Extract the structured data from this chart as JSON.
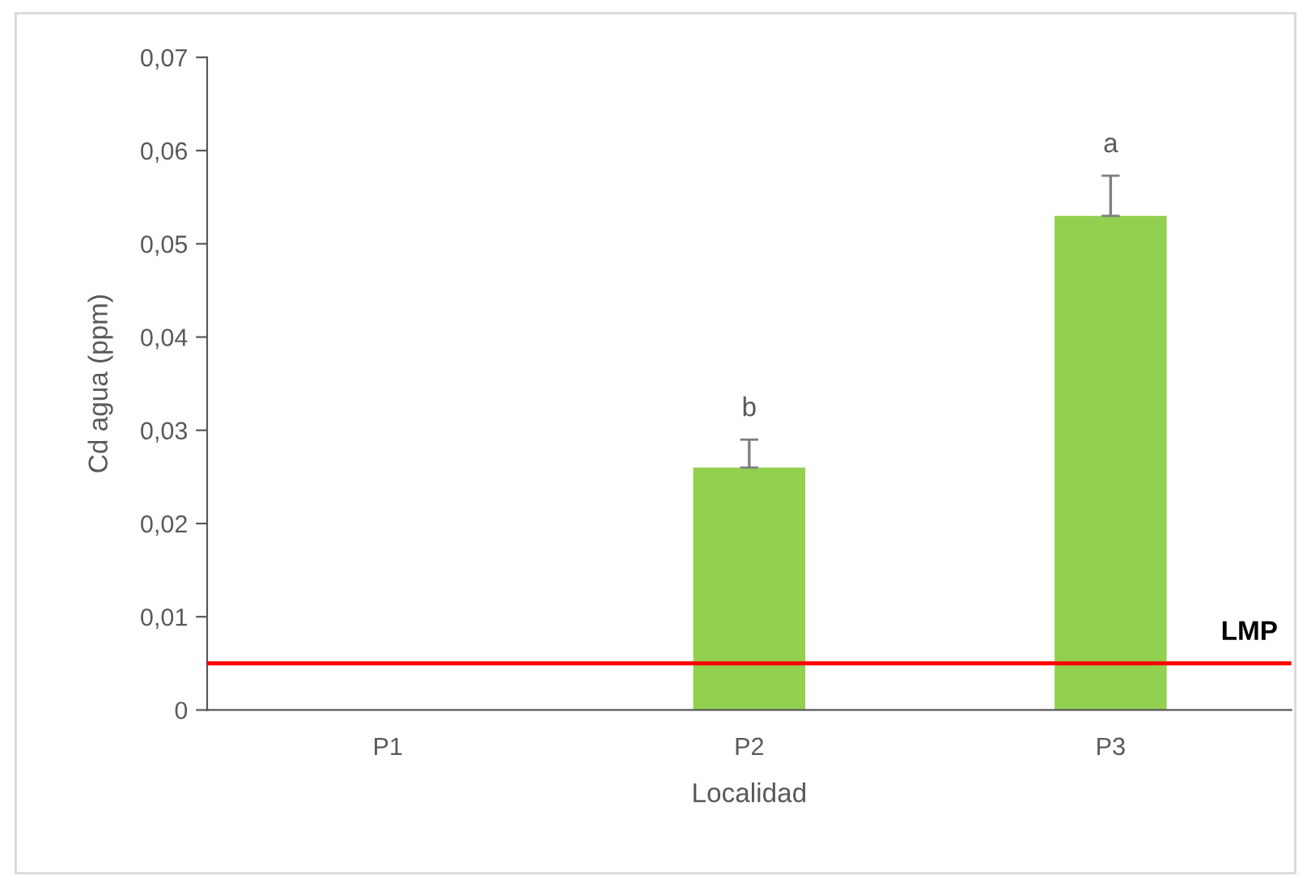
{
  "chart_data": {
    "type": "bar",
    "xlabel": "Localidad",
    "ylabel": "Cd agua (ppm)",
    "categories": [
      "P1",
      "P2",
      "P3"
    ],
    "values": [
      0,
      0.026,
      0.053
    ],
    "errors": [
      null,
      [
        0.026,
        0.029
      ],
      [
        0.053,
        0.0573
      ]
    ],
    "color": "#92d050",
    "ylim": [
      0,
      0.07
    ],
    "yticks": [
      {
        "value": 0,
        "label": "0"
      },
      {
        "value": 0.01,
        "label": "0,01"
      },
      {
        "value": 0.02,
        "label": "0,02"
      },
      {
        "value": 0.03,
        "label": "0,03"
      },
      {
        "value": 0.04,
        "label": "0,04"
      },
      {
        "value": 0.05,
        "label": "0,05"
      },
      {
        "value": 0.06,
        "label": "0,06"
      },
      {
        "value": 0.07,
        "label": "0,07"
      }
    ],
    "ref_lines": [
      {
        "axis": "y",
        "value": 0.005,
        "label": "LMP",
        "color": "#ff0000"
      }
    ],
    "annotations": [
      "b",
      "a"
    ],
    "grid": false
  }
}
